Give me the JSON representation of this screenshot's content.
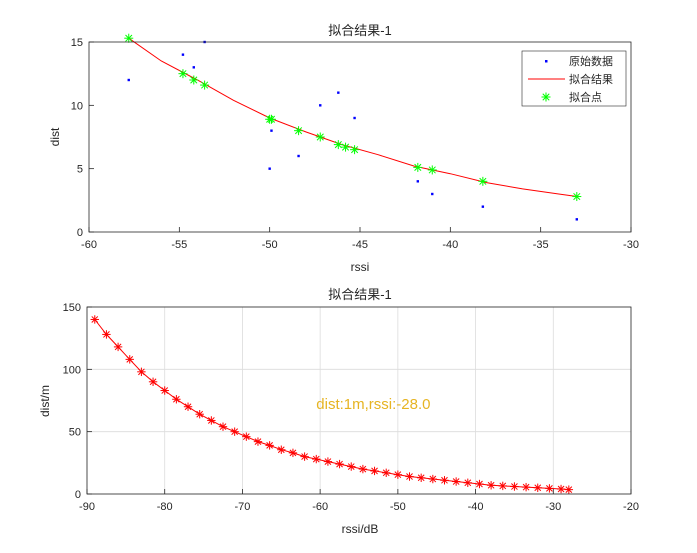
{
  "chart_data": [
    {
      "type": "scatter",
      "title": "拟合结果-1",
      "xlabel": "rssi",
      "ylabel": "dist",
      "xlim": [
        -60,
        -30
      ],
      "ylim": [
        0,
        15
      ],
      "xticks": [
        -60,
        -55,
        -50,
        -45,
        -40,
        -35,
        -30
      ],
      "yticks": [
        0,
        5,
        10,
        15
      ],
      "grid": false,
      "legend_position": "top-right",
      "legend": [
        "原始数据",
        "拟合结果",
        "拟合点"
      ],
      "series": [
        {
          "name": "原始数据",
          "kind": "points",
          "color": "#0000ff",
          "x": [
            -57.8,
            -54.8,
            -53.6,
            -54.2,
            -49.9,
            -50.0,
            -48.4,
            -47.2,
            -46.2,
            -45.3,
            -41.8,
            -41.0,
            -38.2,
            -33.0
          ],
          "y": [
            12,
            14,
            15,
            13,
            8,
            5,
            6,
            10,
            11,
            9,
            4,
            3,
            2,
            1
          ]
        },
        {
          "name": "拟合结果",
          "kind": "line",
          "color": "#ff0000",
          "x": [
            -57.8,
            -56,
            -54,
            -52,
            -50,
            -48,
            -46,
            -44,
            -42,
            -40,
            -38,
            -36,
            -34,
            -33.0
          ],
          "y": [
            15.3,
            13.5,
            12.0,
            10.4,
            9.0,
            7.9,
            6.9,
            6.1,
            5.2,
            4.6,
            3.9,
            3.4,
            3.0,
            2.8
          ]
        },
        {
          "name": "拟合点",
          "kind": "markers",
          "color": "#00ff00",
          "x": [
            -57.8,
            -54.8,
            -54.2,
            -53.6,
            -50.0,
            -49.9,
            -48.4,
            -47.2,
            -46.2,
            -45.8,
            -45.3,
            -41.8,
            -41.0,
            -38.2,
            -33.0
          ],
          "y": [
            15.3,
            12.5,
            12.0,
            11.6,
            8.9,
            8.9,
            8.0,
            7.5,
            6.9,
            6.7,
            6.5,
            5.1,
            4.9,
            4.0,
            2.8
          ]
        }
      ]
    },
    {
      "type": "line",
      "title": "拟合结果-1",
      "xlabel": "rssi/dB",
      "ylabel": "dist/m",
      "xlim": [
        -90,
        -20
      ],
      "ylim": [
        0,
        150
      ],
      "xticks": [
        -90,
        -80,
        -70,
        -60,
        -50,
        -40,
        -30,
        -20
      ],
      "yticks": [
        0,
        50,
        100,
        150
      ],
      "grid": true,
      "annotation": {
        "text": "dist:1m,rssi:-28.0",
        "x": -60.5,
        "y": 68,
        "color": "#e6b422"
      },
      "series": [
        {
          "color": "#ff0000",
          "marker": "*",
          "x": [
            -89,
            -87.5,
            -86,
            -84.5,
            -83,
            -81.5,
            -80,
            -78.5,
            -77,
            -75.5,
            -74,
            -72.5,
            -71,
            -69.5,
            -68,
            -66.5,
            -65,
            -63.5,
            -62,
            -60.5,
            -59,
            -57.5,
            -56,
            -54.5,
            -53,
            -51.5,
            -50,
            -48.5,
            -47,
            -45.5,
            -44,
            -42.5,
            -41,
            -39.5,
            -38,
            -36.5,
            -35,
            -33.5,
            -32,
            -30.5,
            -29,
            -28
          ],
          "y": [
            140,
            128,
            118,
            108,
            98,
            90,
            83,
            76,
            70,
            64,
            59,
            54,
            50,
            46,
            42,
            39,
            35.5,
            33,
            30,
            28,
            26,
            24,
            22,
            20,
            18.5,
            17,
            15.5,
            14,
            13,
            12,
            11,
            10,
            9,
            8,
            7,
            6.5,
            6,
            5.5,
            5,
            4.5,
            4,
            3.5
          ]
        }
      ]
    }
  ]
}
